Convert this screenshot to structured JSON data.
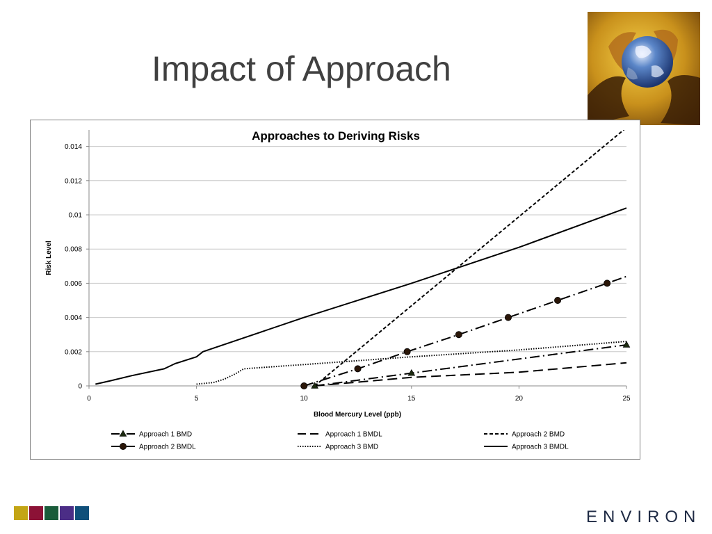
{
  "slide": {
    "title": "Impact of Approach",
    "brand": "ENVIRON",
    "footer_colors": [
      "#c3a515",
      "#8c1236",
      "#1a5c3a",
      "#4b2d86",
      "#0f4f7a"
    ]
  },
  "chart_data": {
    "type": "line",
    "title": "Approaches to Deriving Risks",
    "xlabel": "Blood Mercury Level (ppb)",
    "ylabel": "Risk Level",
    "xlim": [
      0,
      25
    ],
    "ylim": [
      0,
      0.015
    ],
    "xticks": [
      0,
      5,
      10,
      15,
      20,
      25
    ],
    "yticks": [
      0,
      0.002,
      0.004,
      0.006,
      0.008,
      0.01,
      0.012,
      0.014
    ],
    "xtick_labels": [
      "0",
      "5",
      "10",
      "15",
      "20",
      "25"
    ],
    "ytick_labels": [
      "0",
      "0.002",
      "0.004",
      "0.006",
      "0.008",
      "0.01",
      "0.012",
      "0.014"
    ],
    "grid": "horizontal",
    "legend_position": "bottom",
    "series": [
      {
        "name": "Approach 1 BMD",
        "style": "dashdot",
        "marker": "triangle",
        "x": [
          10.5,
          15,
          25
        ],
        "y": [
          0,
          0.00075,
          0.0024
        ]
      },
      {
        "name": "Approach 1 BMDL",
        "style": "longdash",
        "marker": "none",
        "x": [
          10.5,
          15,
          20,
          25
        ],
        "y": [
          0,
          0.0005,
          0.0008,
          0.00135
        ]
      },
      {
        "name": "Approach 2 BMD",
        "style": "shortdash",
        "marker": "none",
        "x": [
          10.5,
          25
        ],
        "y": [
          0,
          0.0151
        ]
      },
      {
        "name": "Approach 2 BMDL",
        "style": "dashdot",
        "marker": "circle",
        "x": [
          10,
          12.5,
          14.8,
          17.2,
          19.5,
          21.8,
          24.1,
          25
        ],
        "y": [
          0,
          0.001,
          0.002,
          0.003,
          0.004,
          0.005,
          0.006,
          0.0064
        ]
      },
      {
        "name": "Approach 3 BMD",
        "style": "dotted",
        "marker": "none",
        "x": [
          5,
          5.8,
          6.3,
          6.8,
          7.2,
          10,
          15,
          20,
          25
        ],
        "y": [
          0.0001,
          0.0002,
          0.0004,
          0.0007,
          0.001,
          0.00125,
          0.0017,
          0.0021,
          0.0026
        ]
      },
      {
        "name": "Approach 3 BMDL",
        "style": "solid",
        "marker": "none",
        "x": [
          0.3,
          1,
          2,
          3.5,
          4,
          5,
          5.3,
          10,
          15,
          20,
          25
        ],
        "y": [
          0.0001,
          0.0003,
          0.0006,
          0.001,
          0.0013,
          0.0017,
          0.002,
          0.004,
          0.006,
          0.0081,
          0.0104
        ]
      }
    ]
  }
}
